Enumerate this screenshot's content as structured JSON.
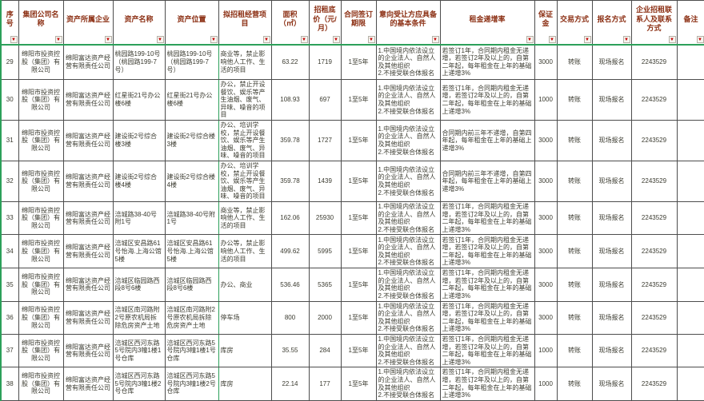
{
  "colors": {
    "accent_green": "#2ca05a",
    "header_text": "#8b2e12",
    "filter_arrow": "#c00000",
    "grid_line": "#4d4d4d"
  },
  "table": {
    "filter_icon": "filter-dropdown-icon",
    "filter_glyph": "▼",
    "columns": [
      "序号",
      "集团公司名称",
      "资产所属企业",
      "资产名称",
      "资产位置",
      "拟招租经营项目",
      "面积（㎡）",
      "招租底价（元/月）",
      "合同签订期限",
      "意向受让方应具备的基本条件",
      "租金递增率",
      "保证金",
      "交易方式",
      "报名方式",
      "企业招租联系人及联系方式",
      "备注"
    ],
    "rows": [
      [
        "29",
        "绵阳市投资控股（集团）有限公司",
        "绵阳富达资产经营有限责任公司",
        "桃园路199-10号（桃园路199-7号）",
        "桃园路199-10号（桃园路199-7号）",
        "商业等，禁止影响他人工作、生活的项目",
        "63.22",
        "1719",
        "1至5年",
        "1.中国境内依法设立的企业法人、自然人及其他组织\n2.不接受联合体报名",
        "若签订1年，合同期内租金无递增，若签订2年及以上的，自第二年起，每年租金在上年的基础上递增3%",
        "3000",
        "转账",
        "现场报名",
        "2243529",
        ""
      ],
      [
        "30",
        "绵阳市投资控股（集团）有限公司",
        "绵阳富达资产经营有限责任公司",
        "红星街21号办公楼6楼",
        "红星街21号办公楼6楼",
        "办公，禁止开设餐饮、娱乐等产生油烟、废气、异味、噪音的项目",
        "108.93",
        "697",
        "1至5年",
        "1.中国境内依法设立的企业法人、自然人及其他组织\n2.不接受联合体报名",
        "若签订1年，合同期内租金无递增，若签订2年及以上的，自第二年起，每年租金在上年的基础上递增3%",
        "1000",
        "转账",
        "现场报名",
        "2243529",
        ""
      ],
      [
        "31",
        "绵阳市投资控股（集团）有限公司",
        "绵阳富达资产经营有限责任公司",
        "建设街2号综合楼3楼",
        "建设街2号综合楼3楼",
        "办公、培训学校，禁止开设餐饮、娱乐等产生油烟、废气、异味、噪音的项目",
        "359.78",
        "1727",
        "1至5年",
        "1.中国境内依法设立的企业法人、自然人及其他组织\n2.不接受联合体报名",
        "合同期内前三年不递增，自第四年起，每年租金在上年的基础上递增3%",
        "3000",
        "转账",
        "现场报名",
        "2243529",
        ""
      ],
      [
        "32",
        "绵阳市投资控股（集团）有限公司",
        "绵阳富达资产经营有限责任公司",
        "建设街2号综合楼4楼",
        "建设街2号综合楼4楼",
        "办公、培训学校，禁止开设餐饮、娱乐等产生油烟、废气、异味、噪音的项目",
        "359.78",
        "1439",
        "1至5年",
        "1.中国境内依法设立的企业法人、自然人及其他组织\n2.不接受联合体报名",
        "合同期内前三年不递增，自第四年起，每年租金在上年的基础上递增3%",
        "3000",
        "转账",
        "现场报名",
        "2243529",
        ""
      ],
      [
        "33",
        "绵阳市投资控股（集团）有限公司",
        "绵阳富达资产经营有限责任公司",
        "涪城路38-40号附1号",
        "涪城路38-40号附1号",
        "商业等，禁止影响他人工作、生活的项目",
        "162.06",
        "25930",
        "1至5年",
        "1.中国境内依法设立的企业法人、自然人及其他组织\n2.不接受联合体报名",
        "若签订1年，合同期内租金无递增，若签订2年及以上的，自第二年起，每年租金在上年的基础上递增3%",
        "3000",
        "转账",
        "现场报名",
        "2243529",
        ""
      ],
      [
        "34",
        "绵阳市投资控股（集团）有限公司",
        "绵阳富达资产经营有限责任公司",
        "涪城区安昌路61号怡海.上海公馆5楼",
        "涪城区安昌路61号怡海.上海公馆5楼",
        "办公等，禁止影响他人工作、生活的项目",
        "499.62",
        "5995",
        "1至5年",
        "1.中国境内依法设立的企业法人、自然人及其他组织\n2.不接受联合体报名",
        "若签订1年，合同期内租金无递增，若签订2年及以上的，自第二年起，每年租金在上年的基础上递增3%",
        "3000",
        "转账",
        "现场报名",
        "2243529",
        ""
      ],
      [
        "35",
        "绵阳市投资控股（集团）有限公司",
        "绵阳富达资产经营有限责任公司",
        "涪城区临园路西段8号6楼",
        "涪城区临园路西段8号6楼",
        "办公、商业",
        "536.46",
        "5365",
        "1至5年",
        "1.中国境内依法设立的企业法人、自然人及其他组织\n2.不接受联合体报名",
        "若签订1年，合同期内租金无递增，若签订2年及以上的，自第二年起，每年租金在上年的基础上递增3%",
        "3000",
        "转账",
        "现场报名",
        "2243529",
        ""
      ],
      [
        "36",
        "绵阳市投资控股（集团）有限公司",
        "绵阳富达资产经营有限责任公司",
        "涪城区南河路附2号原农机局拆除危房资产土地",
        "涪城区南河路附2号原农机局拆除危房资产土地",
        "停车场",
        "800",
        "2000",
        "1至5年",
        "1.中国境内依法设立的企业法人、自然人及其他组织\n2.不接受联合体报名",
        "若签订1年，合同期内租金无递增，若签订2年及以上的，自第二年起，每年租金在上年的基础上递增3%",
        "3000",
        "转账",
        "现场报名",
        "2243529",
        ""
      ],
      [
        "37",
        "绵阳市投资控股（集团）有限公司",
        "绵阳富达资产经营有限责任公司",
        "涪城区西河东路5号院内3幢1楼1号仓库",
        "涪城区西河东路5号院内3幢1楼1号仓库",
        "库房",
        "35.55",
        "284",
        "1至5年",
        "1.中国境内依法设立的企业法人、自然人及其他组织\n2.不接受联合体报名",
        "若签订1年，合同期内租金无递增，若签订2年及以上的，自第二年起，每年租金在上年的基础上递增3%",
        "1000",
        "转账",
        "现场报名",
        "2243529",
        ""
      ],
      [
        "38",
        "绵阳市投资控股（集团）有限公司",
        "绵阳富达资产经营有限责任公司",
        "涪城区西河东路5号院内3幢1楼2号仓库",
        "涪城区西河东路5号院内3幢1楼2号仓库",
        "库房",
        "22.14",
        "177",
        "1至5年",
        "1.中国境内依法设立的企业法人、自然人及其他组织\n2.不接受联合体报名",
        "若签订1年，合同期内租金无递增，若签订2年及以上的，自第二年起，每年租金在上年的基础上递增3%",
        "1000",
        "转账",
        "现场报名",
        "2243529",
        ""
      ]
    ]
  }
}
